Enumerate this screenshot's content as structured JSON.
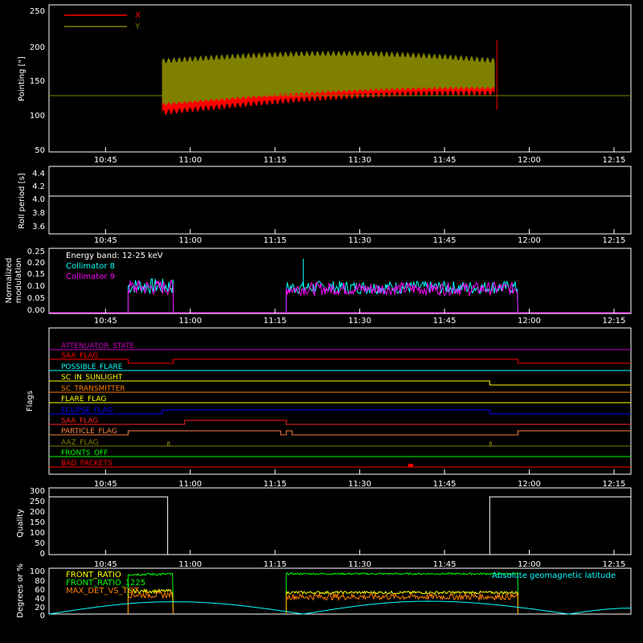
{
  "x_ticks": [
    "10:45",
    "11:00",
    "11:15",
    "11:30",
    "11:45",
    "12:00",
    "12:15"
  ],
  "panels": {
    "pointing": {
      "ylabel": "Pointing [\"]",
      "yticks": [
        "50",
        "100",
        "150",
        "200",
        "250"
      ],
      "legend": [
        {
          "label": "X",
          "color": "#ff0000"
        },
        {
          "label": "Y",
          "color": "#808000"
        }
      ]
    },
    "roll": {
      "ylabel": "Roll period [s]",
      "yticks": [
        "3.6",
        "3.8",
        "4.0",
        "4.2",
        "4.4"
      ]
    },
    "modulation": {
      "ylabel_line1": "Normalized",
      "ylabel_line2": "modulation",
      "yticks": [
        "0.00",
        "0.05",
        "0.10",
        "0.15",
        "0.20",
        "0.25"
      ],
      "energy_band": "Energy band: 12-25 keV",
      "legend": [
        {
          "label": "Collimator 8",
          "color": "#00ffff"
        },
        {
          "label": "Collimator 9",
          "color": "#ff00ff"
        }
      ]
    },
    "flags": {
      "ylabel": "Flags",
      "items": [
        {
          "label": "ATTENUATOR_STATE",
          "color": "#c000c0"
        },
        {
          "label": "SAA_FLAG",
          "color": "#ff0000"
        },
        {
          "label": "POSSIBLE_FLARE",
          "color": "#00ffff"
        },
        {
          "label": "SC_IN_SUNLIGHT",
          "color": "#ffff00"
        },
        {
          "label": "SC_TRANSMITTER",
          "color": "#ff8000"
        },
        {
          "label": "FLARE_FLAG",
          "color": "#ffff00"
        },
        {
          "label": "ECLIPSE_FLAG",
          "color": "#0000ff"
        },
        {
          "label": "SAA_FLAG",
          "color": "#ff2020"
        },
        {
          "label": "PARTICLE_FLAG",
          "color": "#ff8040"
        },
        {
          "label": "AAZ_FLAG",
          "color": "#808000"
        },
        {
          "label": "FRONTS_OFF",
          "color": "#00ff00"
        },
        {
          "label": "BAD_PACKETS",
          "color": "#ff0000"
        }
      ]
    },
    "quality": {
      "ylabel": "Quality",
      "yticks": [
        "0",
        "50",
        "100",
        "150",
        "200",
        "250",
        "300"
      ]
    },
    "ratio": {
      "ylabel": "Degrees or %",
      "yticks": [
        "0",
        "20",
        "40",
        "60",
        "80",
        "100"
      ],
      "legend": [
        {
          "label": "FRONT_RATIO",
          "color": "#ffff00"
        },
        {
          "label": "FRONT_RATIO_1225",
          "color": "#00ff00"
        },
        {
          "label": "MAX_DET_VS_TOT",
          "color": "#ff8000"
        }
      ],
      "right_label": "Absolute geomagnetic latitude",
      "right_label_color": "#00ffff"
    }
  },
  "chart_data": [
    {
      "type": "line",
      "ylabel": "Pointing [\"]",
      "ylim": [
        40,
        250
      ],
      "x_range": [
        "10:35",
        "12:18"
      ],
      "series": [
        {
          "name": "X",
          "note": "oscillating band",
          "time_range": [
            "10:55",
            "11:55"
          ],
          "upper_start": 175,
          "lower_start": 95,
          "mean": 135
        },
        {
          "name": "Y",
          "note": "oscillating band",
          "time_range": [
            "10:55",
            "11:55"
          ],
          "upper_peak": 185,
          "lower_trough": 110,
          "baseline": 128
        }
      ]
    },
    {
      "type": "line",
      "ylabel": "Roll period [s]",
      "ylim": [
        3.5,
        4.5
      ],
      "series": [
        {
          "name": "",
          "values_constant": 4.05
        }
      ]
    },
    {
      "type": "line",
      "ylabel": "Normalized modulation",
      "ylim": [
        0,
        0.25
      ],
      "series": [
        {
          "name": "Collimator 8",
          "segments": [
            [
              "10:49",
              "10:57",
              0.1
            ],
            [
              "11:17",
              "11:58",
              0.1
            ]
          ],
          "peak": 0.21
        },
        {
          "name": "Collimator 9",
          "segments": [
            [
              "10:49",
              "10:57",
              0.1
            ],
            [
              "11:17",
              "11:58",
              0.1
            ]
          ]
        }
      ]
    },
    {
      "type": "line",
      "ylabel": "Quality",
      "ylim": [
        0,
        300
      ],
      "series": [
        {
          "name": "",
          "steps": [
            [
              "10:35",
              260
            ],
            [
              "10:56",
              0
            ],
            [
              "11:53",
              260
            ],
            [
              "12:18",
              260
            ]
          ]
        }
      ]
    },
    {
      "type": "line",
      "ylabel": "Degrees or %",
      "ylim": [
        0,
        100
      ],
      "series": [
        {
          "name": "FRONT_RATIO",
          "segments": [
            [
              "10:49",
              "10:57",
              50
            ],
            [
              "11:17",
              "11:58",
              48
            ]
          ]
        },
        {
          "name": "FRONT_RATIO_1225",
          "segments": [
            [
              "10:49",
              "10:57",
              87
            ],
            [
              "11:17",
              "11:58",
              88
            ]
          ]
        },
        {
          "name": "MAX_DET_VS_TOT",
          "segments": [
            [
              "10:49",
              "10:57",
              40
            ],
            [
              "11:17",
              "11:58",
              38
            ]
          ]
        },
        {
          "name": "Absolute geomagnetic latitude",
          "points": [
            [
              "10:35",
              0
            ],
            [
              "10:57",
              27
            ],
            [
              "11:20",
              0
            ],
            [
              "11:42",
              28
            ],
            [
              "12:07",
              0
            ],
            [
              "12:18",
              13
            ]
          ]
        }
      ]
    }
  ]
}
